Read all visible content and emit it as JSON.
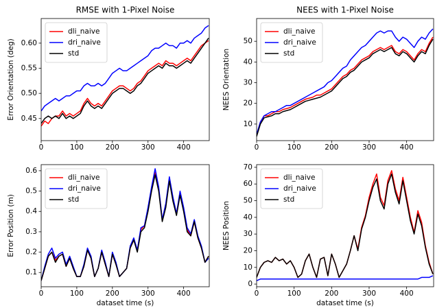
{
  "chart_data": [
    {
      "type": "line",
      "title": "RMSE with 1-Pixel Noise",
      "ylabel": "Error Orientation (deg)",
      "x": [
        0,
        10,
        20,
        30,
        40,
        50,
        60,
        70,
        80,
        90,
        100,
        110,
        120,
        130,
        140,
        150,
        160,
        170,
        180,
        190,
        200,
        210,
        220,
        230,
        240,
        250,
        260,
        270,
        280,
        290,
        300,
        310,
        320,
        330,
        340,
        350,
        360,
        370,
        380,
        390,
        400,
        410,
        420,
        430,
        440,
        450,
        460,
        470
      ],
      "series": [
        {
          "name": "dli_naive",
          "color": "#ff0000",
          "values": [
            0.435,
            0.445,
            0.44,
            0.45,
            0.455,
            0.455,
            0.465,
            0.455,
            0.46,
            0.455,
            0.46,
            0.465,
            0.48,
            0.49,
            0.48,
            0.475,
            0.48,
            0.475,
            0.485,
            0.495,
            0.505,
            0.51,
            0.515,
            0.515,
            0.51,
            0.505,
            0.51,
            0.52,
            0.525,
            0.535,
            0.545,
            0.55,
            0.555,
            0.56,
            0.555,
            0.565,
            0.56,
            0.56,
            0.555,
            0.56,
            0.565,
            0.57,
            0.565,
            0.575,
            0.585,
            0.595,
            0.6,
            0.605
          ]
        },
        {
          "name": "dri_naive",
          "color": "#0000ff",
          "values": [
            0.465,
            0.475,
            0.48,
            0.485,
            0.49,
            0.485,
            0.49,
            0.495,
            0.495,
            0.5,
            0.505,
            0.505,
            0.515,
            0.52,
            0.515,
            0.515,
            0.52,
            0.515,
            0.52,
            0.53,
            0.54,
            0.545,
            0.55,
            0.545,
            0.545,
            0.55,
            0.555,
            0.56,
            0.565,
            0.57,
            0.575,
            0.585,
            0.59,
            0.59,
            0.595,
            0.6,
            0.595,
            0.595,
            0.59,
            0.6,
            0.6,
            0.605,
            0.6,
            0.61,
            0.615,
            0.62,
            0.63,
            0.635
          ]
        },
        {
          "name": "std",
          "color": "#000000",
          "values": [
            0.44,
            0.45,
            0.455,
            0.45,
            0.455,
            0.45,
            0.46,
            0.45,
            0.455,
            0.45,
            0.455,
            0.46,
            0.475,
            0.485,
            0.475,
            0.47,
            0.475,
            0.47,
            0.48,
            0.49,
            0.5,
            0.505,
            0.51,
            0.51,
            0.505,
            0.5,
            0.505,
            0.515,
            0.52,
            0.53,
            0.54,
            0.545,
            0.55,
            0.555,
            0.55,
            0.56,
            0.555,
            0.555,
            0.55,
            0.555,
            0.56,
            0.565,
            0.56,
            0.57,
            0.58,
            0.59,
            0.6,
            0.61
          ]
        }
      ],
      "xlim": [
        0,
        472
      ],
      "xticks": [
        0,
        100,
        200,
        300,
        400
      ],
      "ylim": [
        0.406,
        0.649
      ],
      "yticks": [
        0.45,
        {
          "value": 0.5,
          "label": "0.50"
        },
        0.55,
        {
          "value": 0.6,
          "label": "0.60"
        }
      ],
      "legend": "upper left"
    },
    {
      "type": "line",
      "title": "NEES with 1-Pixel Noise",
      "ylabel": "NEES Orientation",
      "x": [
        0,
        10,
        20,
        30,
        40,
        50,
        60,
        70,
        80,
        90,
        100,
        110,
        120,
        130,
        140,
        150,
        160,
        170,
        180,
        190,
        200,
        210,
        220,
        230,
        240,
        250,
        260,
        270,
        280,
        290,
        300,
        310,
        320,
        330,
        340,
        350,
        360,
        370,
        380,
        390,
        400,
        410,
        420,
        430,
        440,
        450,
        460,
        470
      ],
      "series": [
        {
          "name": "dli_naive",
          "color": "#ff0000",
          "values": [
            4.5,
            11,
            14,
            14,
            15,
            16,
            16,
            17,
            17.5,
            18,
            19,
            20,
            21,
            22,
            22.5,
            23,
            24,
            24,
            25,
            26,
            27,
            29,
            31,
            33,
            34,
            36,
            37,
            39,
            41,
            42,
            43,
            45,
            46,
            47,
            46,
            47,
            48,
            45,
            44,
            46,
            45,
            43,
            41,
            44,
            46,
            45,
            49,
            52
          ]
        },
        {
          "name": "dri_naive",
          "color": "#0000ff",
          "values": [
            5,
            11,
            14,
            15,
            16,
            16,
            17,
            18,
            19,
            19,
            20,
            21,
            22,
            23,
            24,
            25,
            26,
            27,
            28,
            30,
            31,
            33,
            35,
            37,
            38,
            41,
            43,
            45,
            47,
            48,
            50,
            52,
            54,
            55,
            54,
            55,
            55,
            52,
            50,
            52,
            51,
            49,
            47,
            50,
            52,
            51,
            54,
            56
          ]
        },
        {
          "name": "std",
          "color": "#000000",
          "values": [
            4,
            10,
            13,
            13.5,
            14,
            15,
            15,
            16,
            16.5,
            17,
            18,
            19,
            20,
            21,
            21.5,
            22,
            22.5,
            23,
            24,
            25,
            26,
            28,
            30,
            32,
            33,
            35,
            36,
            38,
            40,
            41,
            42,
            44,
            45,
            46,
            45,
            46,
            47,
            44,
            43,
            45,
            44,
            42,
            40,
            43,
            45,
            44,
            48,
            51
          ]
        }
      ],
      "xlim": [
        0,
        472
      ],
      "xticks": [
        0,
        100,
        200,
        300,
        400
      ],
      "ylim": [
        2,
        61
      ],
      "yticks": [
        10,
        20,
        30,
        40,
        50
      ],
      "legend": "upper left"
    },
    {
      "type": "line",
      "xlabel": "dataset time (s)",
      "ylabel": "Error Position (m)",
      "x": [
        0,
        10,
        20,
        30,
        40,
        50,
        60,
        70,
        80,
        90,
        100,
        110,
        120,
        130,
        140,
        150,
        160,
        170,
        180,
        190,
        200,
        210,
        220,
        230,
        240,
        250,
        260,
        270,
        280,
        290,
        300,
        310,
        320,
        330,
        340,
        350,
        360,
        370,
        380,
        390,
        400,
        410,
        420,
        430,
        440,
        450,
        460,
        470
      ],
      "series": [
        {
          "name": "dli_naive",
          "color": "#ff0000",
          "values": [
            0.06,
            0.12,
            0.18,
            0.2,
            0.16,
            0.18,
            0.19,
            0.13,
            0.17,
            0.12,
            0.08,
            0.08,
            0.13,
            0.21,
            0.17,
            0.08,
            0.12,
            0.2,
            0.14,
            0.08,
            0.19,
            0.14,
            0.08,
            0.1,
            0.12,
            0.22,
            0.26,
            0.21,
            0.31,
            0.33,
            0.41,
            0.51,
            0.59,
            0.51,
            0.36,
            0.43,
            0.56,
            0.46,
            0.39,
            0.49,
            0.41,
            0.31,
            0.28,
            0.35,
            0.27,
            0.22,
            0.15,
            0.18
          ]
        },
        {
          "name": "dri_naive",
          "color": "#0000ff",
          "values": [
            0.06,
            0.13,
            0.19,
            0.22,
            0.17,
            0.19,
            0.2,
            0.14,
            0.18,
            0.13,
            0.08,
            0.08,
            0.14,
            0.22,
            0.18,
            0.08,
            0.12,
            0.21,
            0.15,
            0.08,
            0.2,
            0.15,
            0.08,
            0.1,
            0.12,
            0.23,
            0.27,
            0.21,
            0.32,
            0.33,
            0.42,
            0.52,
            0.61,
            0.52,
            0.36,
            0.44,
            0.57,
            0.47,
            0.39,
            0.5,
            0.42,
            0.32,
            0.29,
            0.36,
            0.28,
            0.23,
            0.15,
            0.17
          ]
        },
        {
          "name": "std",
          "color": "#000000",
          "values": [
            0.06,
            0.12,
            0.18,
            0.2,
            0.15,
            0.18,
            0.19,
            0.13,
            0.17,
            0.12,
            0.08,
            0.08,
            0.13,
            0.21,
            0.17,
            0.08,
            0.12,
            0.2,
            0.14,
            0.08,
            0.19,
            0.14,
            0.08,
            0.1,
            0.12,
            0.22,
            0.26,
            0.2,
            0.3,
            0.32,
            0.4,
            0.5,
            0.58,
            0.5,
            0.35,
            0.42,
            0.55,
            0.45,
            0.38,
            0.48,
            0.4,
            0.3,
            0.28,
            0.35,
            0.27,
            0.22,
            0.15,
            0.18
          ]
        }
      ],
      "xlim": [
        0,
        472
      ],
      "xticks": [
        0,
        100,
        200,
        300,
        400
      ],
      "ylim": [
        0.03,
        0.63
      ],
      "yticks": [
        0.1,
        0.2,
        0.3,
        0.4,
        0.5,
        0.6
      ],
      "legend": "upper left"
    },
    {
      "type": "line",
      "xlabel": "dataset time (s)",
      "ylabel": "NEES Position",
      "x": [
        0,
        10,
        20,
        30,
        40,
        50,
        60,
        70,
        80,
        90,
        100,
        110,
        120,
        130,
        140,
        150,
        160,
        170,
        180,
        190,
        200,
        210,
        220,
        230,
        240,
        250,
        260,
        270,
        280,
        290,
        300,
        310,
        320,
        330,
        340,
        350,
        360,
        370,
        380,
        390,
        400,
        410,
        420,
        430,
        440,
        450,
        460,
        470
      ],
      "series": [
        {
          "name": "dli_naive",
          "color": "#ff0000",
          "values": [
            4,
            10,
            13,
            14,
            13,
            16,
            14,
            15,
            12,
            14,
            10,
            4,
            6,
            14,
            18,
            10,
            4,
            15,
            16,
            5,
            18,
            12,
            4,
            8,
            12,
            20,
            29,
            21,
            34,
            41,
            52,
            60,
            66,
            52,
            47,
            62,
            68,
            57,
            50,
            64,
            52,
            40,
            31,
            44,
            37,
            23,
            13,
            6
          ]
        },
        {
          "name": "dri_naive",
          "color": "#0000ff",
          "values": [
            2,
            3,
            3,
            3,
            3,
            3,
            3,
            3,
            3,
            3,
            3,
            3,
            3,
            3,
            3,
            3,
            3,
            3,
            3,
            3,
            3,
            3,
            3,
            3,
            3,
            3,
            3,
            3,
            3,
            3,
            3,
            3,
            3,
            3,
            3,
            3,
            3,
            3,
            3,
            3,
            3,
            3,
            3,
            3,
            4,
            4,
            4,
            5
          ]
        },
        {
          "name": "std",
          "color": "#000000",
          "values": [
            4,
            10,
            13,
            14,
            13,
            16,
            14,
            15,
            12,
            14,
            10,
            4,
            6,
            14,
            18,
            10,
            4,
            15,
            16,
            5,
            18,
            12,
            4,
            8,
            12,
            20,
            29,
            20,
            33,
            40,
            50,
            58,
            63,
            50,
            45,
            60,
            66,
            55,
            48,
            62,
            50,
            38,
            30,
            42,
            35,
            22,
            12,
            6
          ]
        }
      ],
      "xlim": [
        0,
        472
      ],
      "xticks": [
        0,
        100,
        200,
        300,
        400
      ],
      "ylim": [
        -1.6,
        71.6
      ],
      "yticks": [
        0,
        10,
        20,
        30,
        40,
        50,
        60,
        70
      ],
      "legend": "upper left"
    }
  ]
}
